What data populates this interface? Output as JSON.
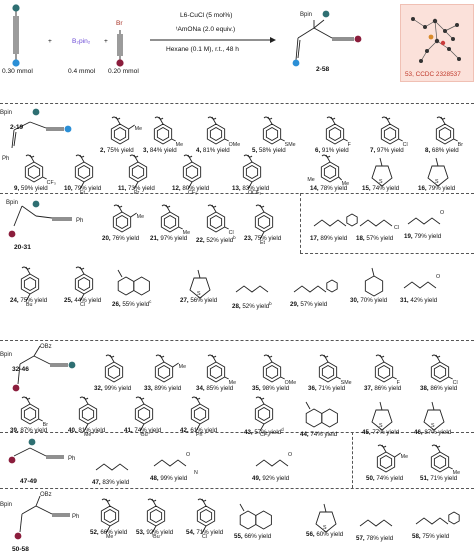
{
  "header": {
    "reagent_left_amount": "0.30 mmol",
    "b2pin2": "B₂pin₂",
    "b2pin2_amount": "0.4 mmol",
    "br_label": "Br",
    "right_amount": "0.20 mmol",
    "cond_1": "L6-CuCl (5 mol%)",
    "cond_2": "ᵗAmONa (2.0 equiv.)",
    "cond_3": "Hexane (0.1 M), r.t., 48 h",
    "bpin": "Bpin",
    "product_range": "2-58",
    "xray_label": "53, CCDC 2328537"
  },
  "sections": [
    {
      "id": "s1",
      "label": "2-19"
    },
    {
      "id": "s2",
      "label": "20-31"
    },
    {
      "id": "s3",
      "label": "32-46"
    },
    {
      "id": "s4",
      "label": "47-49"
    },
    {
      "id": "s5",
      "label": "50-58"
    }
  ],
  "entries": [
    {
      "n": "2",
      "y": "75% yield"
    },
    {
      "n": "3",
      "y": "84% yield"
    },
    {
      "n": "4",
      "y": "81% yield"
    },
    {
      "n": "5",
      "y": "58% yield"
    },
    {
      "n": "6",
      "y": "91% yield"
    },
    {
      "n": "7",
      "y": "97% yield"
    },
    {
      "n": "8",
      "y": "68% yield"
    },
    {
      "n": "9",
      "y": "59% yield"
    },
    {
      "n": "10",
      "y": "79% yield"
    },
    {
      "n": "11",
      "y": "73% yield"
    },
    {
      "n": "12",
      "y": "80% yield"
    },
    {
      "n": "13",
      "y": "83% yield"
    },
    {
      "n": "14",
      "y": "78% yield"
    },
    {
      "n": "15",
      "y": "74% yield"
    },
    {
      "n": "16",
      "y": "79% yield"
    },
    {
      "n": "17",
      "y": "89% yield"
    },
    {
      "n": "18",
      "y": "57% yield"
    },
    {
      "n": "19",
      "y": "79% yield"
    },
    {
      "n": "20",
      "y": "76% yield"
    },
    {
      "n": "21",
      "y": "97% yield"
    },
    {
      "n": "22",
      "y": "52% yield",
      "sup": "b"
    },
    {
      "n": "23",
      "y": "75% yield"
    },
    {
      "n": "24",
      "y": "75% yield"
    },
    {
      "n": "25",
      "y": "44% yield"
    },
    {
      "n": "26",
      "y": "55% yield",
      "sup": "c"
    },
    {
      "n": "27",
      "y": "56% yield"
    },
    {
      "n": "28",
      "y": "52% yield",
      "sup": "b"
    },
    {
      "n": "29",
      "y": "57% yield"
    },
    {
      "n": "30",
      "y": "70% yield"
    },
    {
      "n": "31",
      "y": "42% yield"
    },
    {
      "n": "32",
      "y": "99% yield"
    },
    {
      "n": "33",
      "y": "89% yield"
    },
    {
      "n": "34",
      "y": "85% yield"
    },
    {
      "n": "35",
      "y": "98% yield"
    },
    {
      "n": "36",
      "y": "71% yield"
    },
    {
      "n": "37",
      "y": "86% yield"
    },
    {
      "n": "38",
      "y": "86% yield"
    },
    {
      "n": "39",
      "y": "87% yield"
    },
    {
      "n": "40",
      "y": "81% yield"
    },
    {
      "n": "41",
      "y": "74% yield"
    },
    {
      "n": "42",
      "y": "61% yield"
    },
    {
      "n": "43",
      "y": "57% yield",
      "sup": "d"
    },
    {
      "n": "44",
      "y": "74% yield"
    },
    {
      "n": "45",
      "y": "77% yield"
    },
    {
      "n": "46",
      "y": "87% yield"
    },
    {
      "n": "47",
      "y": "83% yield"
    },
    {
      "n": "48",
      "y": "99% yield"
    },
    {
      "n": "49",
      "y": "92% yield"
    },
    {
      "n": "50",
      "y": "74% yield"
    },
    {
      "n": "51",
      "y": "71% yield"
    },
    {
      "n": "52",
      "y": "66% yield"
    },
    {
      "n": "53",
      "y": "92% yield"
    },
    {
      "n": "54",
      "y": "71% yield"
    },
    {
      "n": "55",
      "y": "66% yield"
    },
    {
      "n": "56",
      "y": "60% yield"
    },
    {
      "n": "57",
      "y": "78% yield"
    },
    {
      "n": "58",
      "y": "75% yield"
    }
  ],
  "subst": {
    "me": "Me",
    "ome": "OMe",
    "sme": "SMe",
    "f": "F",
    "cl": "Cl",
    "br": "Br",
    "cf3": "CF₃",
    "et": "Et",
    "pr": "Pr",
    "ocf3": "OCF₃",
    "s": "S",
    "ph": "Ph",
    "bu": "Bu",
    "tbu": "ᵗBu",
    "obz": "OBz",
    "o": "O",
    "n": "N"
  }
}
